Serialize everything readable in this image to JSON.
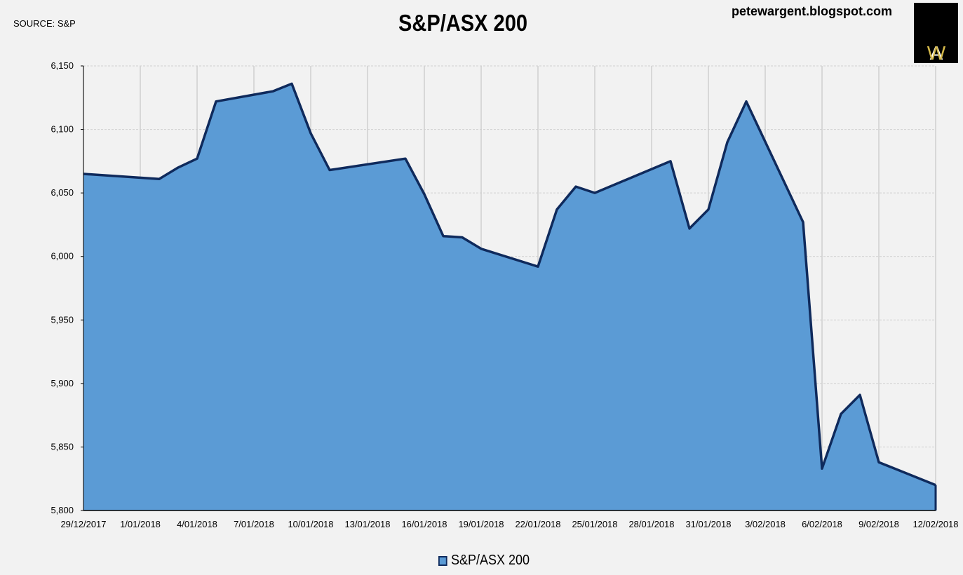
{
  "header": {
    "source": "SOURCE: S&P",
    "title": "S&P/ASX 200",
    "blog": "petewargent.blogspot.com",
    "logo": {
      "left": "A",
      "right": "W"
    }
  },
  "colors": {
    "fill": "#5b9bd5",
    "line": "#0f2a5c",
    "grid": "#d0d0d0",
    "background": "#f2f2f2",
    "logo_background": "#000000",
    "logo_accent": "#d4b84a"
  },
  "chart_data": {
    "type": "area",
    "title": "S&P/ASX 200",
    "xlabel": "",
    "ylabel": "",
    "ylim": [
      5800,
      6150
    ],
    "yticks": [
      5800,
      5850,
      5900,
      5950,
      6000,
      6050,
      6100,
      6150
    ],
    "ytick_labels": [
      "5,800",
      "5,850",
      "5,900",
      "5,950",
      "6,000",
      "6,050",
      "6,100",
      "6,150"
    ],
    "xlim": [
      "2017-12-29",
      "2018-02-12"
    ],
    "xtick_dates": [
      "2017-12-29",
      "2018-01-01",
      "2018-01-04",
      "2018-01-07",
      "2018-01-10",
      "2018-01-13",
      "2018-01-16",
      "2018-01-19",
      "2018-01-22",
      "2018-01-25",
      "2018-01-28",
      "2018-01-31",
      "2018-02-03",
      "2018-02-06",
      "2018-02-09",
      "2018-02-12"
    ],
    "xtick_labels": [
      "29/12/2017",
      "1/01/2018",
      "4/01/2018",
      "7/01/2018",
      "10/01/2018",
      "13/01/2018",
      "16/01/2018",
      "19/01/2018",
      "22/01/2018",
      "25/01/2018",
      "28/01/2018",
      "31/01/2018",
      "3/02/2018",
      "6/02/2018",
      "9/02/2018",
      "12/02/2018"
    ],
    "grid": true,
    "legend_position": "bottom",
    "series": [
      {
        "name": "S&P/ASX 200",
        "x": [
          "2017-12-29",
          "2018-01-02",
          "2018-01-03",
          "2018-01-04",
          "2018-01-05",
          "2018-01-08",
          "2018-01-09",
          "2018-01-10",
          "2018-01-11",
          "2018-01-15",
          "2018-01-16",
          "2018-01-17",
          "2018-01-18",
          "2018-01-19",
          "2018-01-22",
          "2018-01-23",
          "2018-01-24",
          "2018-01-25",
          "2018-01-29",
          "2018-01-30",
          "2018-01-31",
          "2018-02-01",
          "2018-02-02",
          "2018-02-05",
          "2018-02-06",
          "2018-02-07",
          "2018-02-08",
          "2018-02-09",
          "2018-02-12"
        ],
        "y": [
          6065,
          6061,
          6070,
          6077,
          6122,
          6130,
          6136,
          6097,
          6068,
          6077,
          6049,
          6016,
          6015,
          6006,
          5992,
          6037,
          6055,
          6050,
          6075,
          6022,
          6037,
          6090,
          6122,
          6027,
          5833,
          5876,
          5891,
          5838,
          5820
        ]
      }
    ]
  },
  "legend": {
    "label": "S&P/ASX 200"
  }
}
